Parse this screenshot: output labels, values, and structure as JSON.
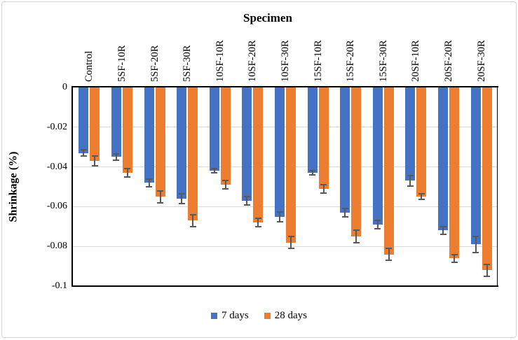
{
  "figure": {
    "title": "Specimen",
    "y_axis_title": "Shrinkage (%)"
  },
  "chart_data": {
    "type": "bar",
    "orientation": "vertical-downward",
    "title": "Specimen",
    "xlabel": "Specimen",
    "ylabel": "Shrinkage (%)",
    "ylim": [
      -0.1,
      0
    ],
    "ytick_interval": 0.02,
    "ytick_labels": [
      "0",
      "-0.02",
      "-0.04",
      "-0.06",
      "-0.08",
      "-0.1"
    ],
    "grid": true,
    "legend_position": "bottom",
    "error_bars": true,
    "categories": [
      "Control",
      "5SF-10R",
      "5SF-20R",
      "5SF-30R",
      "10SF-10R",
      "10SF-20R",
      "10SF-30R",
      "15SF-10R",
      "15SF-20R",
      "15SF-30R",
      "20SF-10R",
      "20SF-20R",
      "20SF-30R"
    ],
    "series": [
      {
        "name": "7 days",
        "color": "#4472C4",
        "values": [
          -0.033,
          -0.035,
          -0.048,
          -0.056,
          -0.042,
          -0.057,
          -0.065,
          -0.043,
          -0.063,
          -0.069,
          -0.047,
          -0.072,
          -0.079
        ],
        "errors": [
          0.0015,
          0.0015,
          0.002,
          0.0025,
          0.001,
          0.002,
          0.0025,
          0.001,
          0.002,
          0.002,
          0.0025,
          0.002,
          0.004
        ]
      },
      {
        "name": "28 days",
        "color": "#ED7D31",
        "values": [
          -0.037,
          -0.043,
          -0.055,
          -0.067,
          -0.049,
          -0.068,
          -0.078,
          -0.051,
          -0.075,
          -0.084,
          -0.055,
          -0.086,
          -0.092
        ],
        "errors": [
          0.0025,
          0.002,
          0.003,
          0.003,
          0.002,
          0.002,
          0.003,
          0.002,
          0.003,
          0.003,
          0.0015,
          0.002,
          0.003
        ]
      }
    ],
    "colors": {
      "gridline": "#d9d9d9",
      "axis": "#000000",
      "error_bar": "#595959",
      "figure_border": "#d2d2d2"
    }
  }
}
